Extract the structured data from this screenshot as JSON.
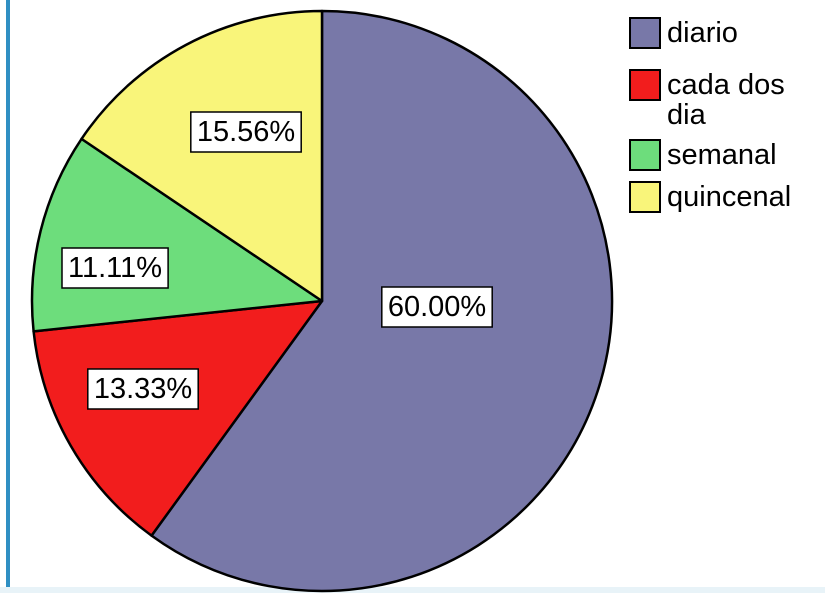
{
  "chart_data": {
    "type": "pie",
    "title": "",
    "categories": [
      "diario",
      "cada dos dia",
      "semanal",
      "quincenal"
    ],
    "values": [
      60.0,
      13.33,
      11.11,
      15.56
    ],
    "labels": [
      "60.00%",
      "13.33%",
      "11.11%",
      "15.56%"
    ],
    "colors": [
      "#7878a8",
      "#f21d1d",
      "#6ddd7c",
      "#f9f57a"
    ],
    "legend": {
      "placement": "top-right",
      "entries": [
        {
          "lines": [
            "diario"
          ]
        },
        {
          "lines": [
            "cada dos",
            "dia"
          ]
        },
        {
          "lines": [
            "semanal"
          ]
        },
        {
          "lines": [
            "quincenal"
          ]
        }
      ]
    },
    "start_angle": "12 o'clock",
    "direction": "clockwise"
  }
}
